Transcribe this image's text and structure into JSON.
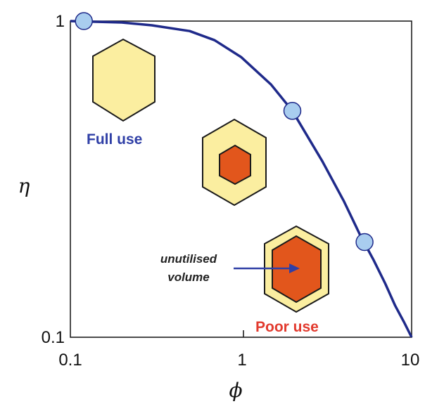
{
  "chart_data": {
    "type": "line",
    "xlabel": "ϕ",
    "ylabel": "η",
    "x_scale": "log",
    "y_scale": "log",
    "xlim": [
      0.1,
      10
    ],
    "ylim": [
      0.1,
      1
    ],
    "x_ticks": [
      "0.1",
      "1",
      "10"
    ],
    "y_ticks": [
      "0.1",
      "1"
    ],
    "grid": false,
    "curve_color": "#1f2a8a",
    "series": [
      {
        "values": [
          {
            "x": 0.1,
            "y": 1.0
          },
          {
            "x": 0.2,
            "y": 0.99
          },
          {
            "x": 0.3,
            "y": 0.97
          },
          {
            "x": 0.5,
            "y": 0.93
          },
          {
            "x": 0.7,
            "y": 0.87
          },
          {
            "x": 1.0,
            "y": 0.77
          },
          {
            "x": 1.5,
            "y": 0.63
          },
          {
            "x": 2.0,
            "y": 0.52
          },
          {
            "x": 3.0,
            "y": 0.36
          },
          {
            "x": 4.0,
            "y": 0.27
          },
          {
            "x": 5.0,
            "y": 0.21
          },
          {
            "x": 6.0,
            "y": 0.175
          },
          {
            "x": 7.0,
            "y": 0.148
          },
          {
            "x": 8.0,
            "y": 0.126
          },
          {
            "x": 9.0,
            "y": 0.112
          },
          {
            "x": 10.0,
            "y": 0.1
          }
        ]
      }
    ],
    "markers": [
      {
        "x": 0.12,
        "y": 1.0
      },
      {
        "x": 2.0,
        "y": 0.52
      },
      {
        "x": 5.3,
        "y": 0.2
      }
    ],
    "marker_color": "#a9cdef",
    "annotations": {
      "full_use": "Full use",
      "poor_use": "Poor use",
      "unutilised_line1": "unutilised",
      "unutilised_line2": "volume"
    },
    "hex_colors": {
      "shell": "#fbeea0",
      "core": "#e2561c",
      "outline": "#1a1a1a"
    }
  }
}
